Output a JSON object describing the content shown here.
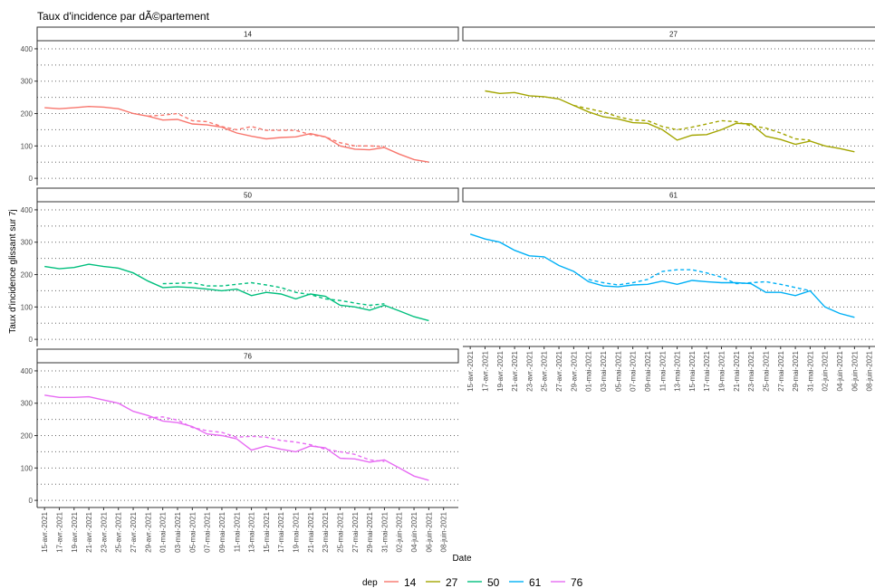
{
  "chart_data": {
    "type": "line",
    "title": "Taux d'incidence par dÃ©partement",
    "ylabel": "Taux d'incidence glissant sur 7j",
    "xlabel": "Date",
    "legend_title": "dep",
    "x": [
      "2021-04-15",
      "2021-04-17",
      "2021-04-19",
      "2021-04-21",
      "2021-04-23",
      "2021-04-25",
      "2021-04-27",
      "2021-04-29",
      "2021-05-01",
      "2021-05-03",
      "2021-05-05",
      "2021-05-07",
      "2021-05-09",
      "2021-05-11",
      "2021-05-13",
      "2021-05-15",
      "2021-05-17",
      "2021-05-19",
      "2021-05-21",
      "2021-05-23",
      "2021-05-25",
      "2021-05-27",
      "2021-05-29",
      "2021-05-31",
      "2021-06-02",
      "2021-06-04",
      "2021-06-06"
    ],
    "xlim": [
      "2021-04-14",
      "2021-06-10"
    ],
    "xticks": [
      {
        "value": "2021-04-15",
        "label": "15-avr.-2021"
      },
      {
        "value": "2021-04-17",
        "label": "17-avr.-2021"
      },
      {
        "value": "2021-04-19",
        "label": "19-avr.-2021"
      },
      {
        "value": "2021-04-21",
        "label": "21-avr.-2021"
      },
      {
        "value": "2021-04-23",
        "label": "23-avr.-2021"
      },
      {
        "value": "2021-04-25",
        "label": "25-avr.-2021"
      },
      {
        "value": "2021-04-27",
        "label": "27-avr.-2021"
      },
      {
        "value": "2021-04-29",
        "label": "29-avr.-2021"
      },
      {
        "value": "2021-05-01",
        "label": "01-mai-2021"
      },
      {
        "value": "2021-05-03",
        "label": "03-mai-2021"
      },
      {
        "value": "2021-05-05",
        "label": "05-mai-2021"
      },
      {
        "value": "2021-05-07",
        "label": "07-mai-2021"
      },
      {
        "value": "2021-05-09",
        "label": "09-mai-2021"
      },
      {
        "value": "2021-05-11",
        "label": "11-mai-2021"
      },
      {
        "value": "2021-05-13",
        "label": "13-mai-2021"
      },
      {
        "value": "2021-05-15",
        "label": "15-mai-2021"
      },
      {
        "value": "2021-05-17",
        "label": "17-mai-2021"
      },
      {
        "value": "2021-05-19",
        "label": "19-mai-2021"
      },
      {
        "value": "2021-05-21",
        "label": "21-mai-2021"
      },
      {
        "value": "2021-05-23",
        "label": "23-mai-2021"
      },
      {
        "value": "2021-05-25",
        "label": "25-mai-2021"
      },
      {
        "value": "2021-05-27",
        "label": "27-mai-2021"
      },
      {
        "value": "2021-05-29",
        "label": "29-mai-2021"
      },
      {
        "value": "2021-05-31",
        "label": "31-mai-2021"
      },
      {
        "value": "2021-06-02",
        "label": "02-juin-2021"
      },
      {
        "value": "2021-06-04",
        "label": "04-juin-2021"
      },
      {
        "value": "2021-06-06",
        "label": "06-juin-2021"
      },
      {
        "value": "2021-06-08",
        "label": "08-juin-2021"
      }
    ],
    "ylim": [
      -22,
      425
    ],
    "yticks": [
      0,
      100,
      200,
      300,
      400
    ],
    "minor_yticks": [
      50,
      150,
      250,
      350
    ],
    "grid": true,
    "legend_position": "bottom",
    "facets": [
      {
        "dep": "14",
        "color": "#F8766D",
        "values": [
          218,
          215,
          218,
          222,
          220,
          215,
          200,
          192,
          180,
          182,
          168,
          165,
          158,
          140,
          130,
          122,
          126,
          128,
          138,
          128,
          100,
          90,
          88,
          95,
          75,
          58,
          50
        ],
        "dashed_values": [
          null,
          null,
          null,
          null,
          null,
          null,
          null,
          192,
          195,
          200,
          178,
          175,
          160,
          150,
          160,
          148,
          148,
          148,
          135,
          128,
          110,
          100,
          100,
          98,
          null,
          null,
          null
        ]
      },
      {
        "dep": "27",
        "color": "#A3A500",
        "values": [
          null,
          270,
          262,
          265,
          255,
          252,
          245,
          225,
          205,
          190,
          183,
          172,
          170,
          150,
          118,
          133,
          135,
          150,
          170,
          168,
          130,
          120,
          105,
          115,
          100,
          92,
          82
        ],
        "dashed_values": [
          null,
          null,
          null,
          null,
          null,
          null,
          null,
          225,
          215,
          205,
          190,
          180,
          178,
          160,
          150,
          158,
          168,
          178,
          175,
          162,
          155,
          140,
          122,
          118,
          null,
          null,
          null
        ]
      },
      {
        "dep": "50",
        "color": "#00BF7D",
        "values": [
          225,
          218,
          222,
          232,
          225,
          220,
          205,
          180,
          160,
          162,
          160,
          155,
          150,
          155,
          135,
          145,
          140,
          125,
          140,
          133,
          105,
          100,
          90,
          105,
          88,
          70,
          58
        ],
        "dashed_values": [
          null,
          null,
          null,
          null,
          null,
          null,
          null,
          null,
          172,
          173,
          175,
          165,
          165,
          170,
          175,
          168,
          160,
          145,
          138,
          125,
          120,
          112,
          105,
          110,
          null,
          null,
          null
        ]
      },
      {
        "dep": "61",
        "color": "#00B0F6",
        "values": [
          325,
          310,
          300,
          275,
          258,
          255,
          228,
          210,
          178,
          165,
          162,
          168,
          170,
          180,
          170,
          182,
          178,
          175,
          175,
          172,
          145,
          145,
          135,
          150,
          100,
          80,
          68
        ],
        "dashed_values": [
          null,
          null,
          null,
          null,
          null,
          null,
          null,
          null,
          185,
          175,
          168,
          175,
          185,
          210,
          215,
          215,
          205,
          192,
          172,
          175,
          178,
          170,
          160,
          150,
          null,
          null,
          null
        ]
      },
      {
        "dep": "76",
        "color": "#E76BF3",
        "values": [
          325,
          318,
          318,
          320,
          310,
          300,
          275,
          262,
          245,
          240,
          228,
          205,
          200,
          190,
          155,
          168,
          158,
          150,
          168,
          162,
          130,
          128,
          118,
          125,
          100,
          75,
          62
        ],
        "dashed_values": [
          null,
          null,
          null,
          null,
          null,
          null,
          null,
          255,
          258,
          248,
          225,
          215,
          210,
          195,
          198,
          195,
          185,
          180,
          172,
          158,
          150,
          142,
          125,
          120,
          null,
          null,
          null
        ]
      }
    ]
  }
}
